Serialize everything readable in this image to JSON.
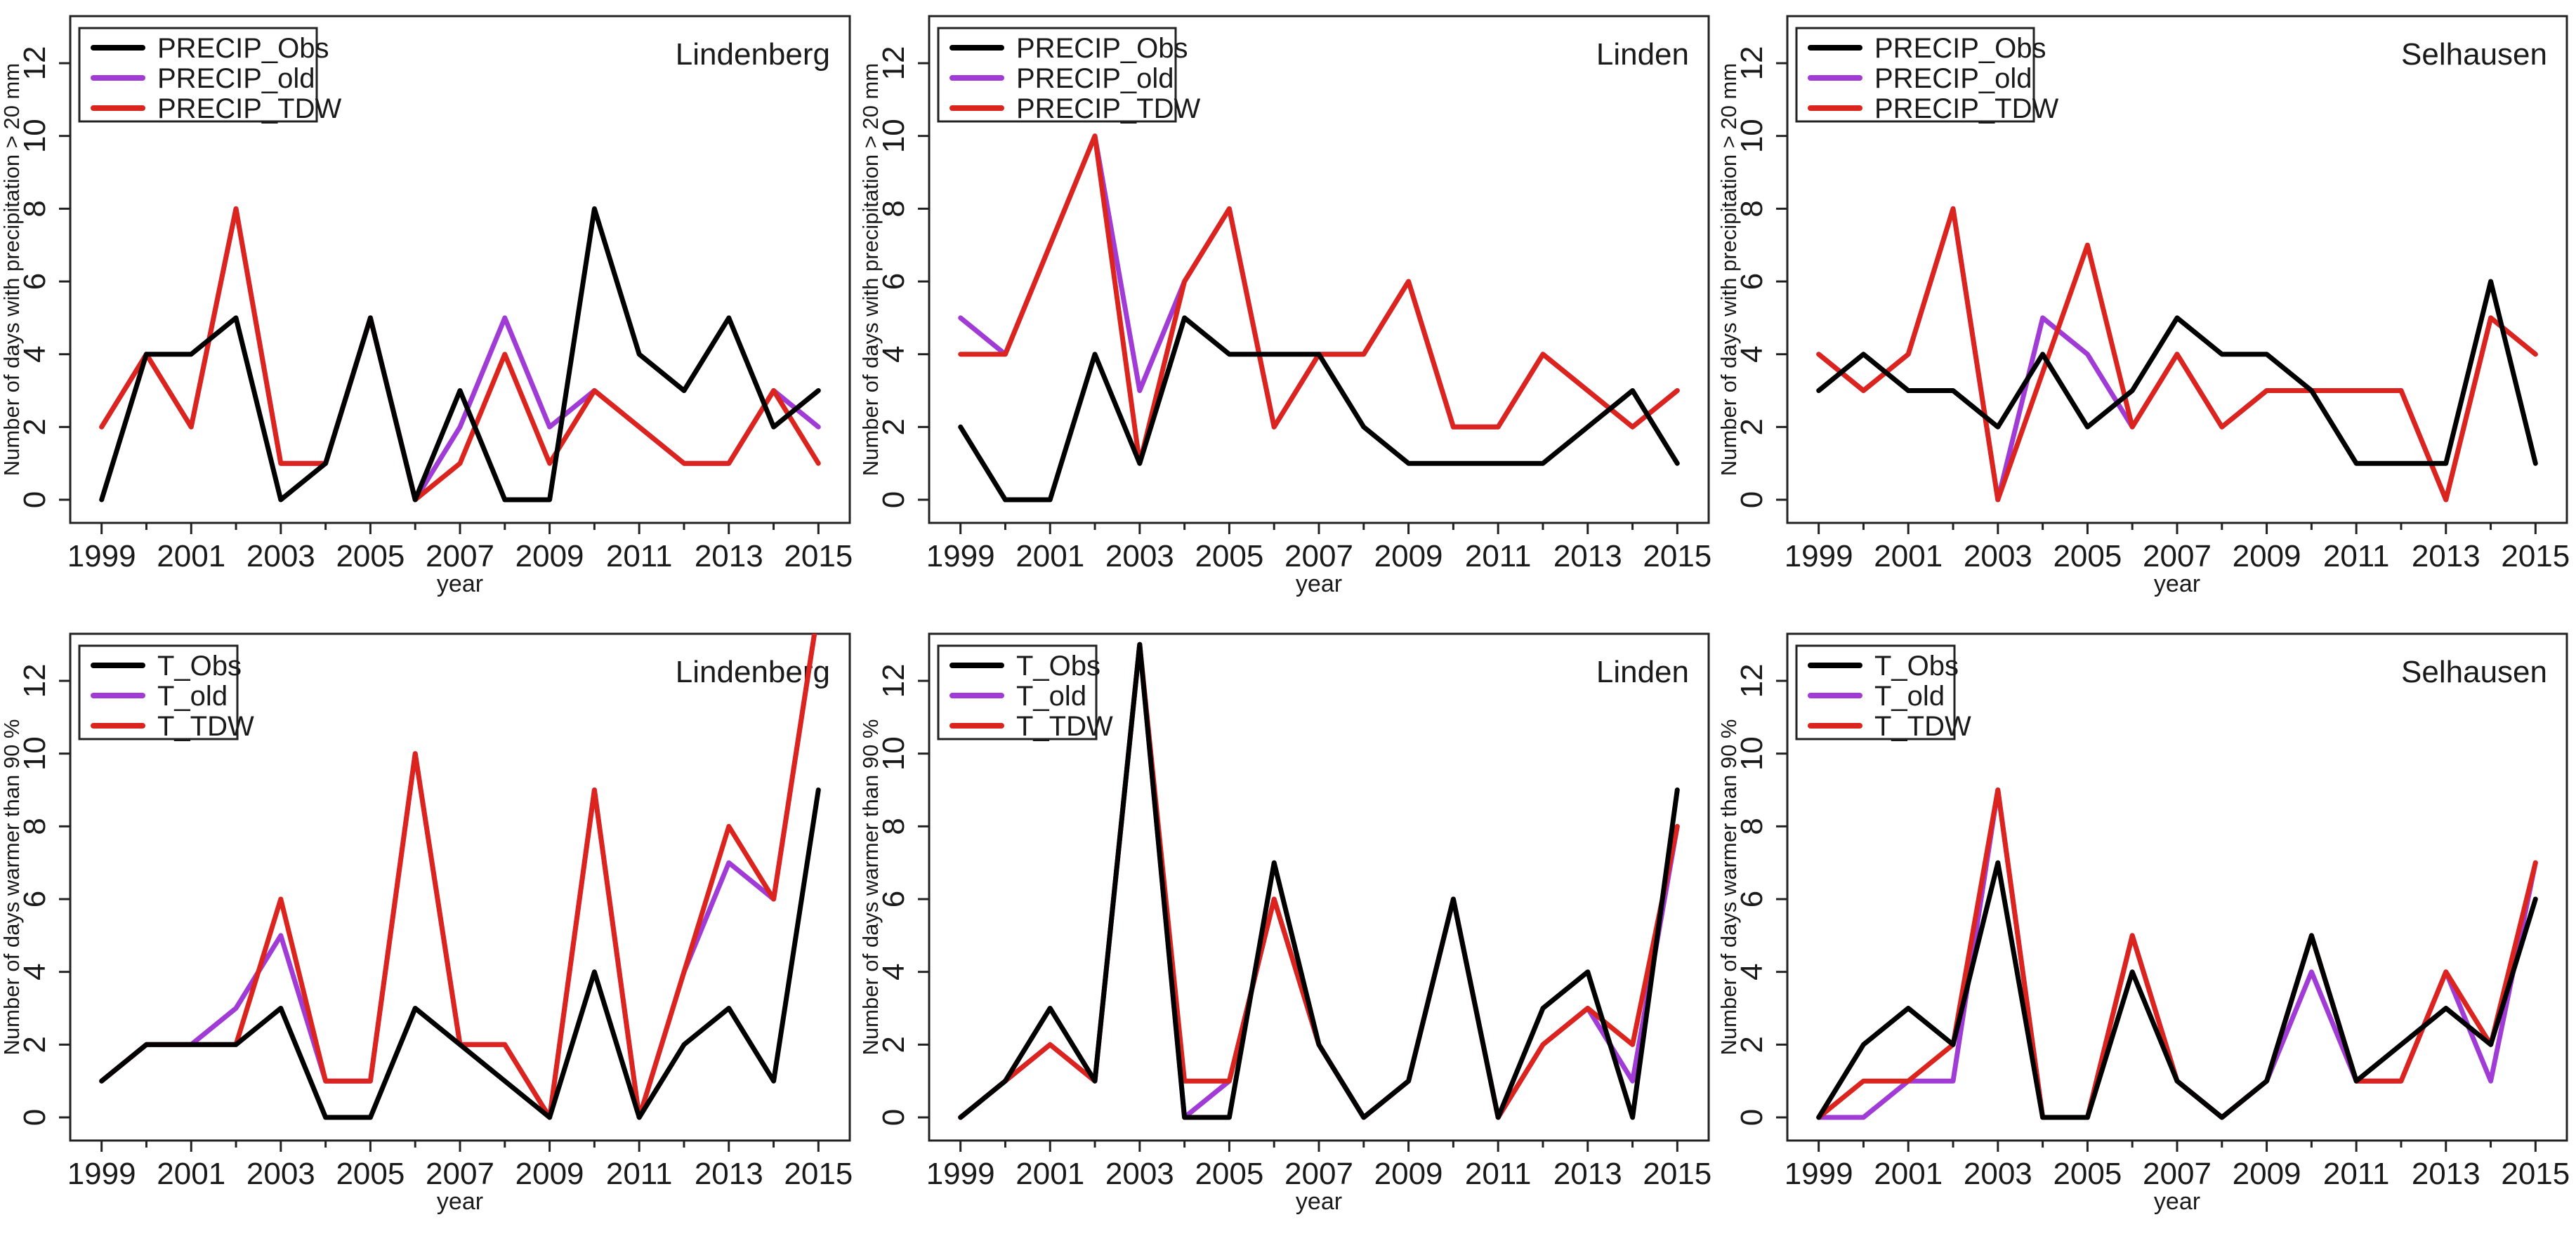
{
  "figure": {
    "background": "#ffffff",
    "rows": 2,
    "cols": 3,
    "xlabel": "year",
    "ylabel_row1": "Number of days with precipitation > 20 mm",
    "ylabel_row2": "Number of days warmer than 90 %",
    "xticks_labeled": [
      1999,
      2001,
      2003,
      2005,
      2007,
      2009,
      2011,
      2013,
      2015
    ],
    "yticks_labeled": [
      0,
      2,
      4,
      6,
      8,
      10,
      12
    ]
  },
  "colors": {
    "obs": "#000000",
    "old": "#A03BD6",
    "tdw": "#DB241D",
    "text": "#1a1a1a",
    "box": "#222222"
  },
  "chart_data": [
    {
      "type": "line",
      "title": "Lindenberg",
      "xlabel": "year",
      "ylabel": "Number of days with precipitation > 20 mm",
      "x": [
        1999,
        2000,
        2001,
        2002,
        2003,
        2004,
        2005,
        2006,
        2007,
        2008,
        2009,
        2010,
        2011,
        2012,
        2013,
        2014,
        2015
      ],
      "xlim": [
        1998.3,
        2015.7
      ],
      "ylim": [
        -0.6,
        13.3
      ],
      "grid": false,
      "legend_position": "top-left",
      "series": [
        {
          "name": "PRECIP_Obs",
          "color_key": "obs",
          "values": [
            0,
            4,
            4,
            5,
            0,
            1,
            5,
            0,
            3,
            0,
            0,
            8,
            4,
            3,
            5,
            2,
            3
          ]
        },
        {
          "name": "PRECIP_old",
          "color_key": "old",
          "values": [
            2,
            4,
            2,
            8,
            1,
            1,
            5,
            0,
            2,
            5,
            2,
            3,
            2,
            1,
            1,
            3,
            2
          ]
        },
        {
          "name": "PRECIP_TDW",
          "color_key": "tdw",
          "values": [
            2,
            4,
            2,
            8,
            1,
            1,
            5,
            0,
            1,
            4,
            1,
            3,
            2,
            1,
            1,
            3,
            1
          ]
        }
      ]
    },
    {
      "type": "line",
      "title": "Linden",
      "xlabel": "year",
      "ylabel": "Number of days with precipitation > 20 mm",
      "x": [
        1999,
        2000,
        2001,
        2002,
        2003,
        2004,
        2005,
        2006,
        2007,
        2008,
        2009,
        2010,
        2011,
        2012,
        2013,
        2014,
        2015
      ],
      "xlim": [
        1998.3,
        2015.7
      ],
      "ylim": [
        -0.6,
        13.3
      ],
      "grid": false,
      "legend_position": "top-left",
      "series": [
        {
          "name": "PRECIP_Obs",
          "color_key": "obs",
          "values": [
            2,
            0,
            0,
            4,
            1,
            5,
            4,
            4,
            4,
            2,
            1,
            1,
            1,
            1,
            2,
            3,
            1
          ]
        },
        {
          "name": "PRECIP_old",
          "color_key": "old",
          "values": [
            5,
            4,
            7,
            10,
            3,
            6,
            8,
            2,
            4,
            4,
            6,
            2,
            2,
            4,
            3,
            2,
            3
          ]
        },
        {
          "name": "PRECIP_TDW",
          "color_key": "tdw",
          "values": [
            4,
            4,
            7,
            10,
            1,
            6,
            8,
            2,
            4,
            4,
            6,
            2,
            2,
            4,
            3,
            2,
            3
          ]
        }
      ]
    },
    {
      "type": "line",
      "title": "Selhausen",
      "xlabel": "year",
      "ylabel": "Number of days with precipitation > 20 mm",
      "x": [
        1999,
        2000,
        2001,
        2002,
        2003,
        2004,
        2005,
        2006,
        2007,
        2008,
        2009,
        2010,
        2011,
        2012,
        2013,
        2014,
        2015
      ],
      "xlim": [
        1998.3,
        2015.7
      ],
      "ylim": [
        -0.6,
        13.3
      ],
      "grid": false,
      "legend_position": "top-left",
      "series": [
        {
          "name": "PRECIP_Obs",
          "color_key": "obs",
          "values": [
            3,
            4,
            3,
            3,
            2,
            4,
            2,
            3,
            5,
            4,
            4,
            3,
            1,
            1,
            1,
            6,
            1
          ]
        },
        {
          "name": "PRECIP_old",
          "color_key": "old",
          "values": [
            4,
            3,
            4,
            8,
            0,
            5,
            4,
            2,
            4,
            2,
            3,
            3,
            3,
            3,
            0,
            5,
            4
          ]
        },
        {
          "name": "PRECIP_TDW",
          "color_key": "tdw",
          "values": [
            4,
            3,
            4,
            8,
            0,
            3.5,
            7,
            2,
            4,
            2,
            3,
            3,
            3,
            3,
            0,
            5,
            4
          ]
        }
      ]
    },
    {
      "type": "line",
      "title": "Lindenberg",
      "xlabel": "year",
      "ylabel": "Number of days warmer than 90 %",
      "x": [
        1999,
        2000,
        2001,
        2002,
        2003,
        2004,
        2005,
        2006,
        2007,
        2008,
        2009,
        2010,
        2011,
        2012,
        2013,
        2014,
        2015
      ],
      "xlim": [
        1998.3,
        2015.7
      ],
      "ylim": [
        -0.6,
        13.3
      ],
      "grid": false,
      "legend_position": "top-left",
      "series": [
        {
          "name": "T_Obs",
          "color_key": "obs",
          "values": [
            1,
            2,
            2,
            2,
            3,
            0,
            0,
            3,
            2,
            1,
            0,
            4,
            0,
            2,
            3,
            1,
            9
          ]
        },
        {
          "name": "T_old",
          "color_key": "old",
          "values": [
            1,
            2,
            2,
            3,
            5,
            1,
            1,
            10,
            2,
            2,
            0,
            9,
            0,
            4,
            7,
            6,
            14
          ]
        },
        {
          "name": "T_TDW",
          "color_key": "tdw",
          "values": [
            1,
            2,
            2,
            2,
            6,
            1,
            1,
            10,
            2,
            2,
            0,
            9,
            0,
            4,
            8,
            6,
            14
          ]
        }
      ]
    },
    {
      "type": "line",
      "title": "Linden",
      "xlabel": "year",
      "ylabel": "Number of days warmer than 90 %",
      "x": [
        1999,
        2000,
        2001,
        2002,
        2003,
        2004,
        2005,
        2006,
        2007,
        2008,
        2009,
        2010,
        2011,
        2012,
        2013,
        2014,
        2015
      ],
      "xlim": [
        1998.3,
        2015.7
      ],
      "ylim": [
        -0.6,
        13.3
      ],
      "grid": false,
      "legend_position": "top-left",
      "series": [
        {
          "name": "T_Obs",
          "color_key": "obs",
          "values": [
            0,
            1,
            3,
            1,
            13,
            0,
            0,
            7,
            2,
            0,
            1,
            6,
            0,
            3,
            4,
            0,
            9
          ]
        },
        {
          "name": "T_old",
          "color_key": "old",
          "values": [
            0,
            1,
            2,
            1,
            13,
            0,
            1,
            6,
            2,
            0,
            1,
            6,
            0,
            2,
            3,
            1,
            8
          ]
        },
        {
          "name": "T_TDW",
          "color_key": "tdw",
          "values": [
            0,
            1,
            2,
            1,
            13,
            1,
            1,
            6,
            2,
            0,
            1,
            6,
            0,
            2,
            3,
            2,
            8
          ]
        }
      ]
    },
    {
      "type": "line",
      "title": "Selhausen",
      "xlabel": "year",
      "ylabel": "Number of days warmer than 90 %",
      "x": [
        1999,
        2000,
        2001,
        2002,
        2003,
        2004,
        2005,
        2006,
        2007,
        2008,
        2009,
        2010,
        2011,
        2012,
        2013,
        2014,
        2015
      ],
      "xlim": [
        1998.3,
        2015.7
      ],
      "ylim": [
        -0.6,
        13.3
      ],
      "grid": false,
      "legend_position": "top-left",
      "series": [
        {
          "name": "T_Obs",
          "color_key": "obs",
          "values": [
            0,
            2,
            3,
            2,
            7,
            0,
            0,
            4,
            1,
            0,
            1,
            5,
            1,
            2,
            3,
            2,
            6
          ]
        },
        {
          "name": "T_old",
          "color_key": "old",
          "values": [
            0,
            0,
            1,
            1,
            9,
            0,
            0,
            5,
            1,
            0,
            1,
            4,
            1,
            1,
            4,
            1,
            7
          ]
        },
        {
          "name": "T_TDW",
          "color_key": "tdw",
          "values": [
            0,
            1,
            1,
            2,
            9,
            0,
            0,
            5,
            1,
            0,
            1,
            5,
            1,
            1,
            4,
            2,
            7
          ]
        }
      ]
    }
  ]
}
